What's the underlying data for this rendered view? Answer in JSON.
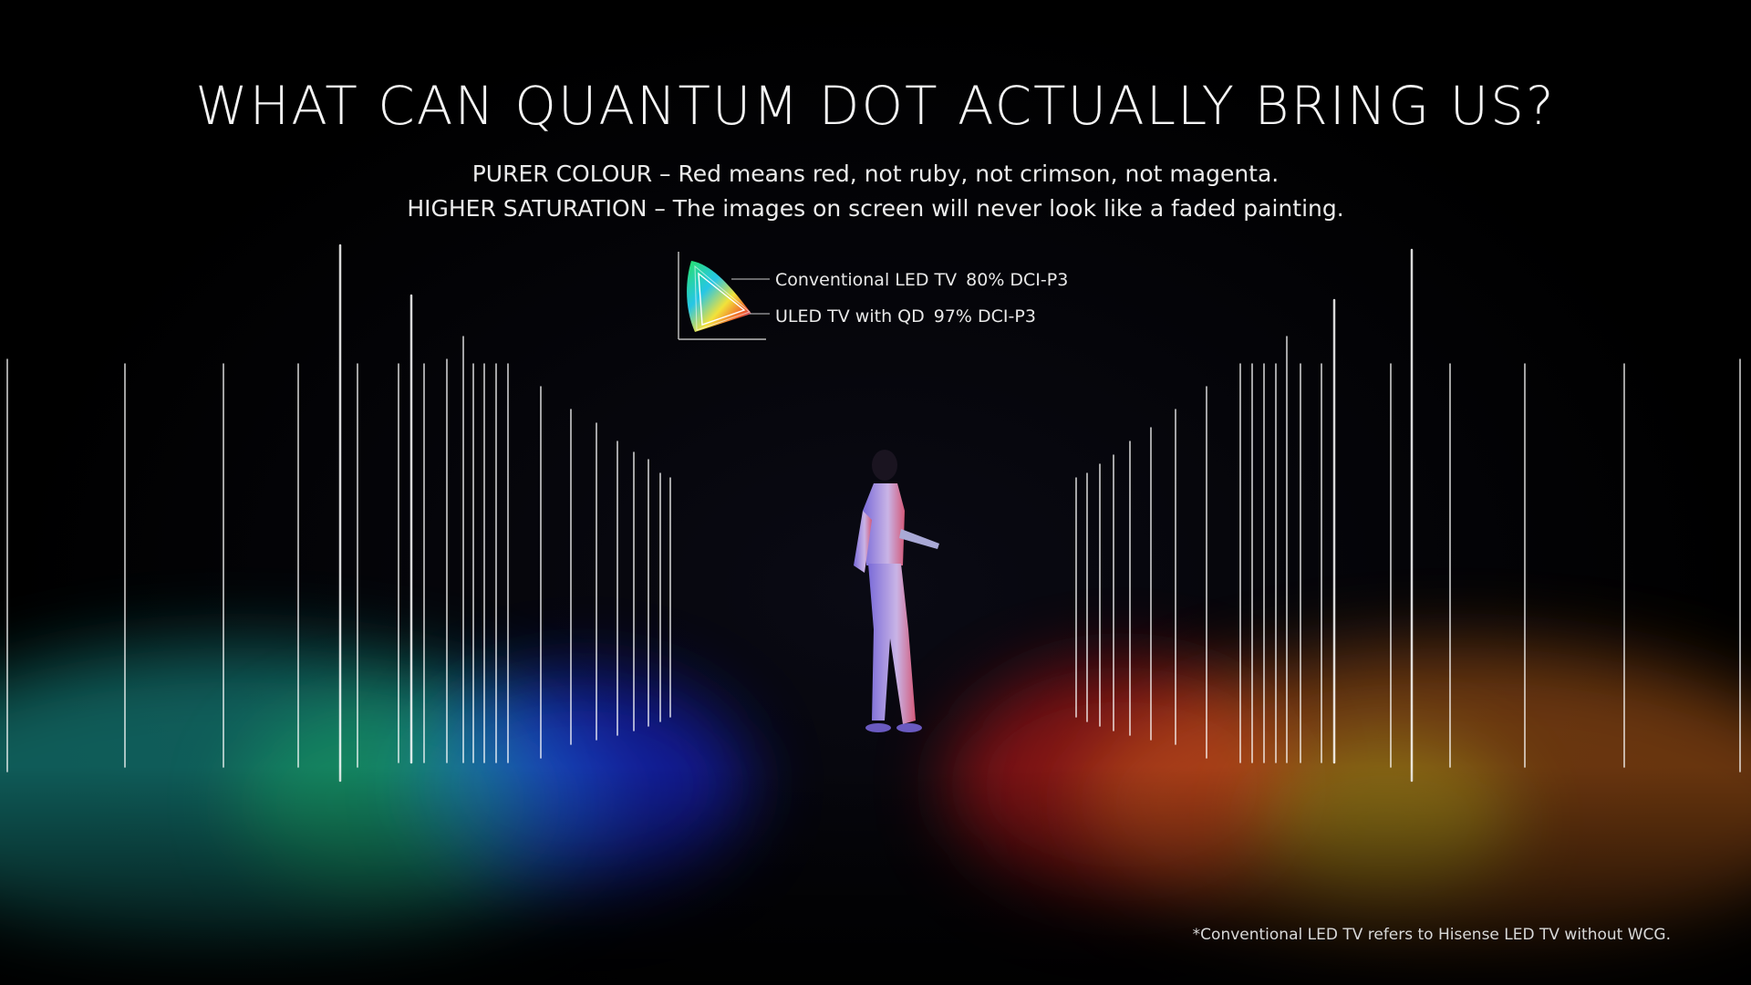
{
  "headline": "WHAT CAN QUANTUM DOT ACTUALLY BRING US?",
  "subtitle_lines": [
    "PURER COLOUR – Red means red, not ruby, not crimson, not magenta.",
    "HIGHER SATURATION – The images on screen will never look like a faded painting."
  ],
  "gamut_legend": [
    {
      "label": "Conventional LED TV",
      "value": "80% DCI-P3"
    },
    {
      "label": "ULED TV with QD",
      "value": "97% DCI-P3"
    }
  ],
  "footnote": "*Conventional LED TV refers to Hisense LED TV without WCG.",
  "colors": {
    "background": "#000000",
    "teal": "#4fe6e0",
    "green": "#39e37a",
    "blue": "#2c3dff",
    "red": "#ff2b2b",
    "orange": "#ffa24a",
    "yellow": "#e8f03a"
  },
  "icons": [
    "color-gamut-diagram-icon"
  ]
}
